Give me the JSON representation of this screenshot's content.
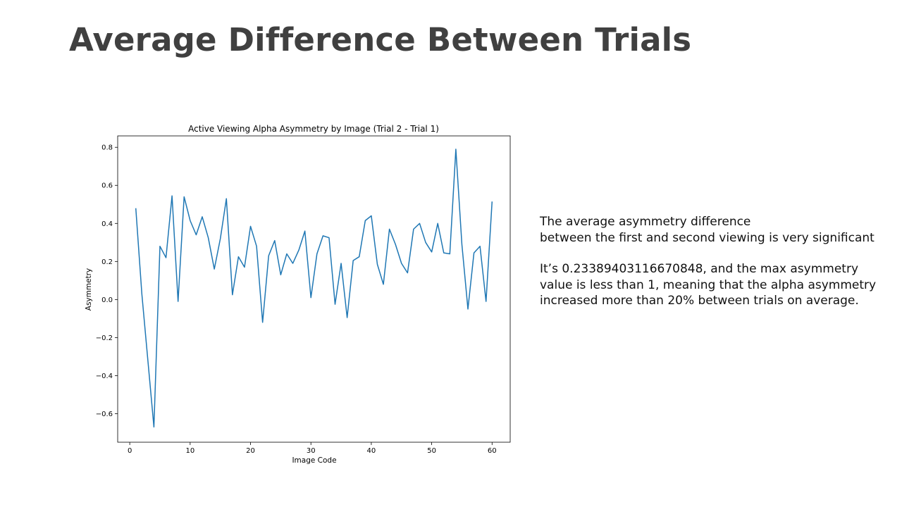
{
  "slide": {
    "title": "Average Difference Between Trials",
    "paragraph1": [
      "The average asymmetry difference",
      "between the first and second viewing is very significant"
    ],
    "paragraph2": [
      "It’s 0.23389403116670848,  and the max asymmetry",
      "value is less than 1, meaning that the alpha asymmetry",
      "increased more than 20% between trials on average."
    ]
  },
  "chart_data": {
    "type": "line",
    "title": "Active Viewing Alpha Asymmetry by Image (Trial 2 - Trial 1)",
    "xlabel": "Image Code",
    "ylabel": "Asymmetry",
    "xlim": [
      -2,
      63
    ],
    "ylim": [
      -0.75,
      0.86
    ],
    "xticks": [
      0,
      10,
      20,
      30,
      40,
      50,
      60
    ],
    "yticks": [
      -0.6,
      -0.4,
      -0.2,
      0.0,
      0.2,
      0.4,
      0.6,
      0.8
    ],
    "ytick_labels": [
      "−0.6",
      "−0.4",
      "−0.2",
      "0.0",
      "0.2",
      "0.4",
      "0.6",
      "0.8"
    ],
    "grid": false,
    "line_color": "#1f77b4",
    "x": [
      1,
      2,
      3,
      4,
      5,
      6,
      7,
      8,
      9,
      10,
      11,
      12,
      13,
      14,
      15,
      16,
      17,
      18,
      19,
      20,
      21,
      22,
      23,
      24,
      25,
      26,
      27,
      28,
      29,
      30,
      31,
      32,
      33,
      34,
      35,
      36,
      37,
      38,
      39,
      40,
      41,
      42,
      43,
      44,
      45,
      46,
      47,
      48,
      49,
      50,
      51,
      52,
      53,
      54,
      55,
      56,
      57,
      58,
      59,
      60
    ],
    "y": [
      0.48,
      0.03,
      -0.32,
      -0.67,
      0.28,
      0.22,
      0.545,
      -0.01,
      0.54,
      0.415,
      0.34,
      0.435,
      0.325,
      0.16,
      0.32,
      0.53,
      0.025,
      0.225,
      0.17,
      0.385,
      0.28,
      -0.12,
      0.23,
      0.31,
      0.13,
      0.24,
      0.19,
      0.26,
      0.36,
      0.01,
      0.24,
      0.335,
      0.325,
      -0.025,
      0.19,
      -0.095,
      0.205,
      0.225,
      0.415,
      0.44,
      0.185,
      0.08,
      0.37,
      0.29,
      0.19,
      0.14,
      0.37,
      0.4,
      0.3,
      0.25,
      0.4,
      0.245,
      0.24,
      0.79,
      0.29,
      -0.05,
      0.245,
      0.28,
      -0.01,
      0.515
    ]
  }
}
